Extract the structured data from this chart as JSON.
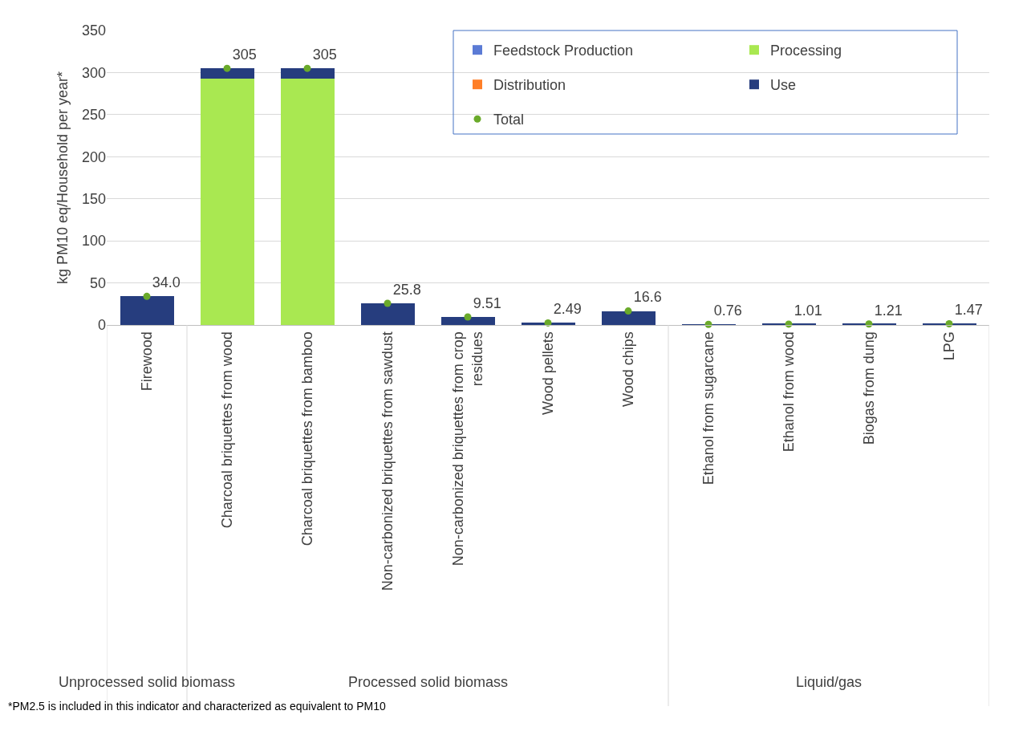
{
  "chart_data": {
    "type": "bar",
    "stacked": true,
    "ylabel": "kg PM10 eq/Household per year*",
    "categories": [
      "Firewood",
      "Charcoal briquettes from wood",
      "Charcoal briquettes from bamboo",
      "Non-carbonized briquettes from sawdust",
      "Non-carbonized briquettes from crop residues",
      "Wood pellets",
      "Wood chips",
      "Ethanol from sugarcane",
      "Ethanol from wood",
      "Biogas from dung",
      "LPG"
    ],
    "series": [
      {
        "name": "Feedstock Production",
        "color": "#5b7bd5",
        "values": [
          null,
          null,
          null,
          null,
          null,
          null,
          null,
          null,
          null,
          null,
          null
        ]
      },
      {
        "name": "Processing",
        "color": "#a9e851",
        "values": [
          0,
          293,
          293,
          0,
          0,
          0,
          0,
          0,
          0,
          0,
          0
        ]
      },
      {
        "name": "Distribution",
        "color": "#ff7f27",
        "values": [
          null,
          null,
          null,
          null,
          null,
          null,
          null,
          null,
          null,
          null,
          null
        ]
      },
      {
        "name": "Use",
        "color": "#263d7e",
        "values": [
          34.0,
          12,
          12,
          25.8,
          9.51,
          2.49,
          16.6,
          0.76,
          1.01,
          1.21,
          1.47
        ]
      },
      {
        "name": "Total",
        "type": "scatter",
        "color": "#6aaa2a",
        "marker": "circle",
        "values": [
          34.0,
          305,
          305,
          25.8,
          9.51,
          2.49,
          16.6,
          0.76,
          1.01,
          1.21,
          1.47
        ],
        "value_labels": [
          "34.0",
          "305",
          "305",
          "25.8",
          "9.51",
          "2.49",
          "16.6",
          "0.76",
          "1.01",
          "1.21",
          "1.47"
        ]
      }
    ],
    "ylim": [
      0,
      350
    ],
    "yticks": [
      0,
      50,
      100,
      150,
      200,
      250,
      300,
      350
    ],
    "grid": "y",
    "legend": "top right",
    "annotations": [
      "Unprocessed solid biomass",
      "Processed solid biomass",
      "Liquid/gas",
      "*PM2.5 is included in this indicator and characterized as equivalent to PM10"
    ]
  }
}
